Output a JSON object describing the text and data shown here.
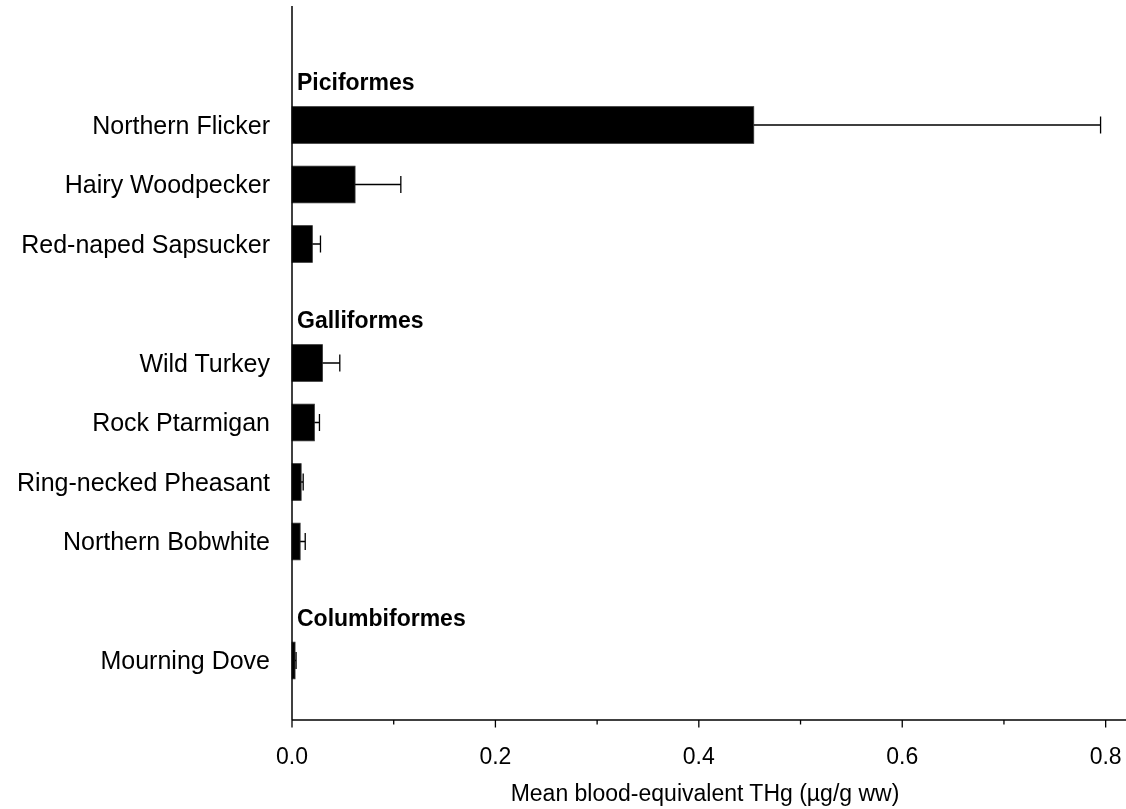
{
  "chart_data": {
    "type": "bar",
    "orientation": "horizontal",
    "categories": [
      null,
      "Northern Flicker",
      "Hairy Woodpecker",
      "Red-naped Sapsucker",
      null,
      "Wild Turkey",
      "Rock Ptarmigan",
      "Ring-necked Pheasant",
      "Northern Bobwhite",
      null,
      "Mourning Dove"
    ],
    "values": [
      null,
      0.454,
      0.062,
      0.02,
      null,
      0.03,
      0.022,
      0.009,
      0.008,
      null,
      0.003
    ],
    "errors": [
      null,
      [
        0.454,
        0.795
      ],
      [
        0.062,
        0.107
      ],
      [
        0.02,
        0.028
      ],
      null,
      [
        0.03,
        0.047
      ],
      [
        0.022,
        0.027
      ],
      [
        0.009,
        0.011
      ],
      [
        0.008,
        0.013
      ],
      null,
      [
        0.003,
        0.004
      ]
    ],
    "color": "#000000",
    "xlim": [
      0,
      0.82
    ],
    "xticks": [
      {
        "value": 0,
        "label": "0.0"
      },
      {
        "value": 0.1,
        "label": null
      },
      0.2,
      {
        "value": 0.3,
        "label": null
      },
      0.4,
      {
        "value": 0.5,
        "label": null
      },
      0.6,
      {
        "value": 0.7,
        "label": null
      },
      0.8
    ],
    "xlabel": "Mean blood-equivalent THg (µg/g ww)",
    "annotations": [
      "Piciformes",
      "Galliformes",
      "Columbiformes"
    ]
  }
}
